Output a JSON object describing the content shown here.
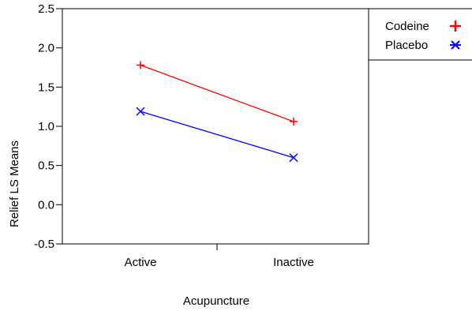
{
  "chart_data": {
    "type": "line",
    "title": "",
    "xlabel": "Acupuncture",
    "ylabel": "Relief LS Means",
    "categories": [
      "Active",
      "Inactive"
    ],
    "ylim": [
      -0.5,
      2.5
    ],
    "yticks": [
      "2.5",
      "2.0",
      "1.5",
      "1.0",
      "0.5",
      "0.0",
      "-0.5"
    ],
    "ytick_values": [
      2.5,
      2.0,
      1.5,
      1.0,
      0.5,
      0.0,
      -0.5
    ],
    "grid": false,
    "legend_position": "right",
    "series": [
      {
        "name": "Codeine",
        "values": [
          1.78,
          1.06
        ],
        "color": "#ff0000",
        "marker": "plus"
      },
      {
        "name": "Placebo",
        "values": [
          1.19,
          0.6
        ],
        "color": "#0000ff",
        "marker": "x"
      }
    ]
  }
}
